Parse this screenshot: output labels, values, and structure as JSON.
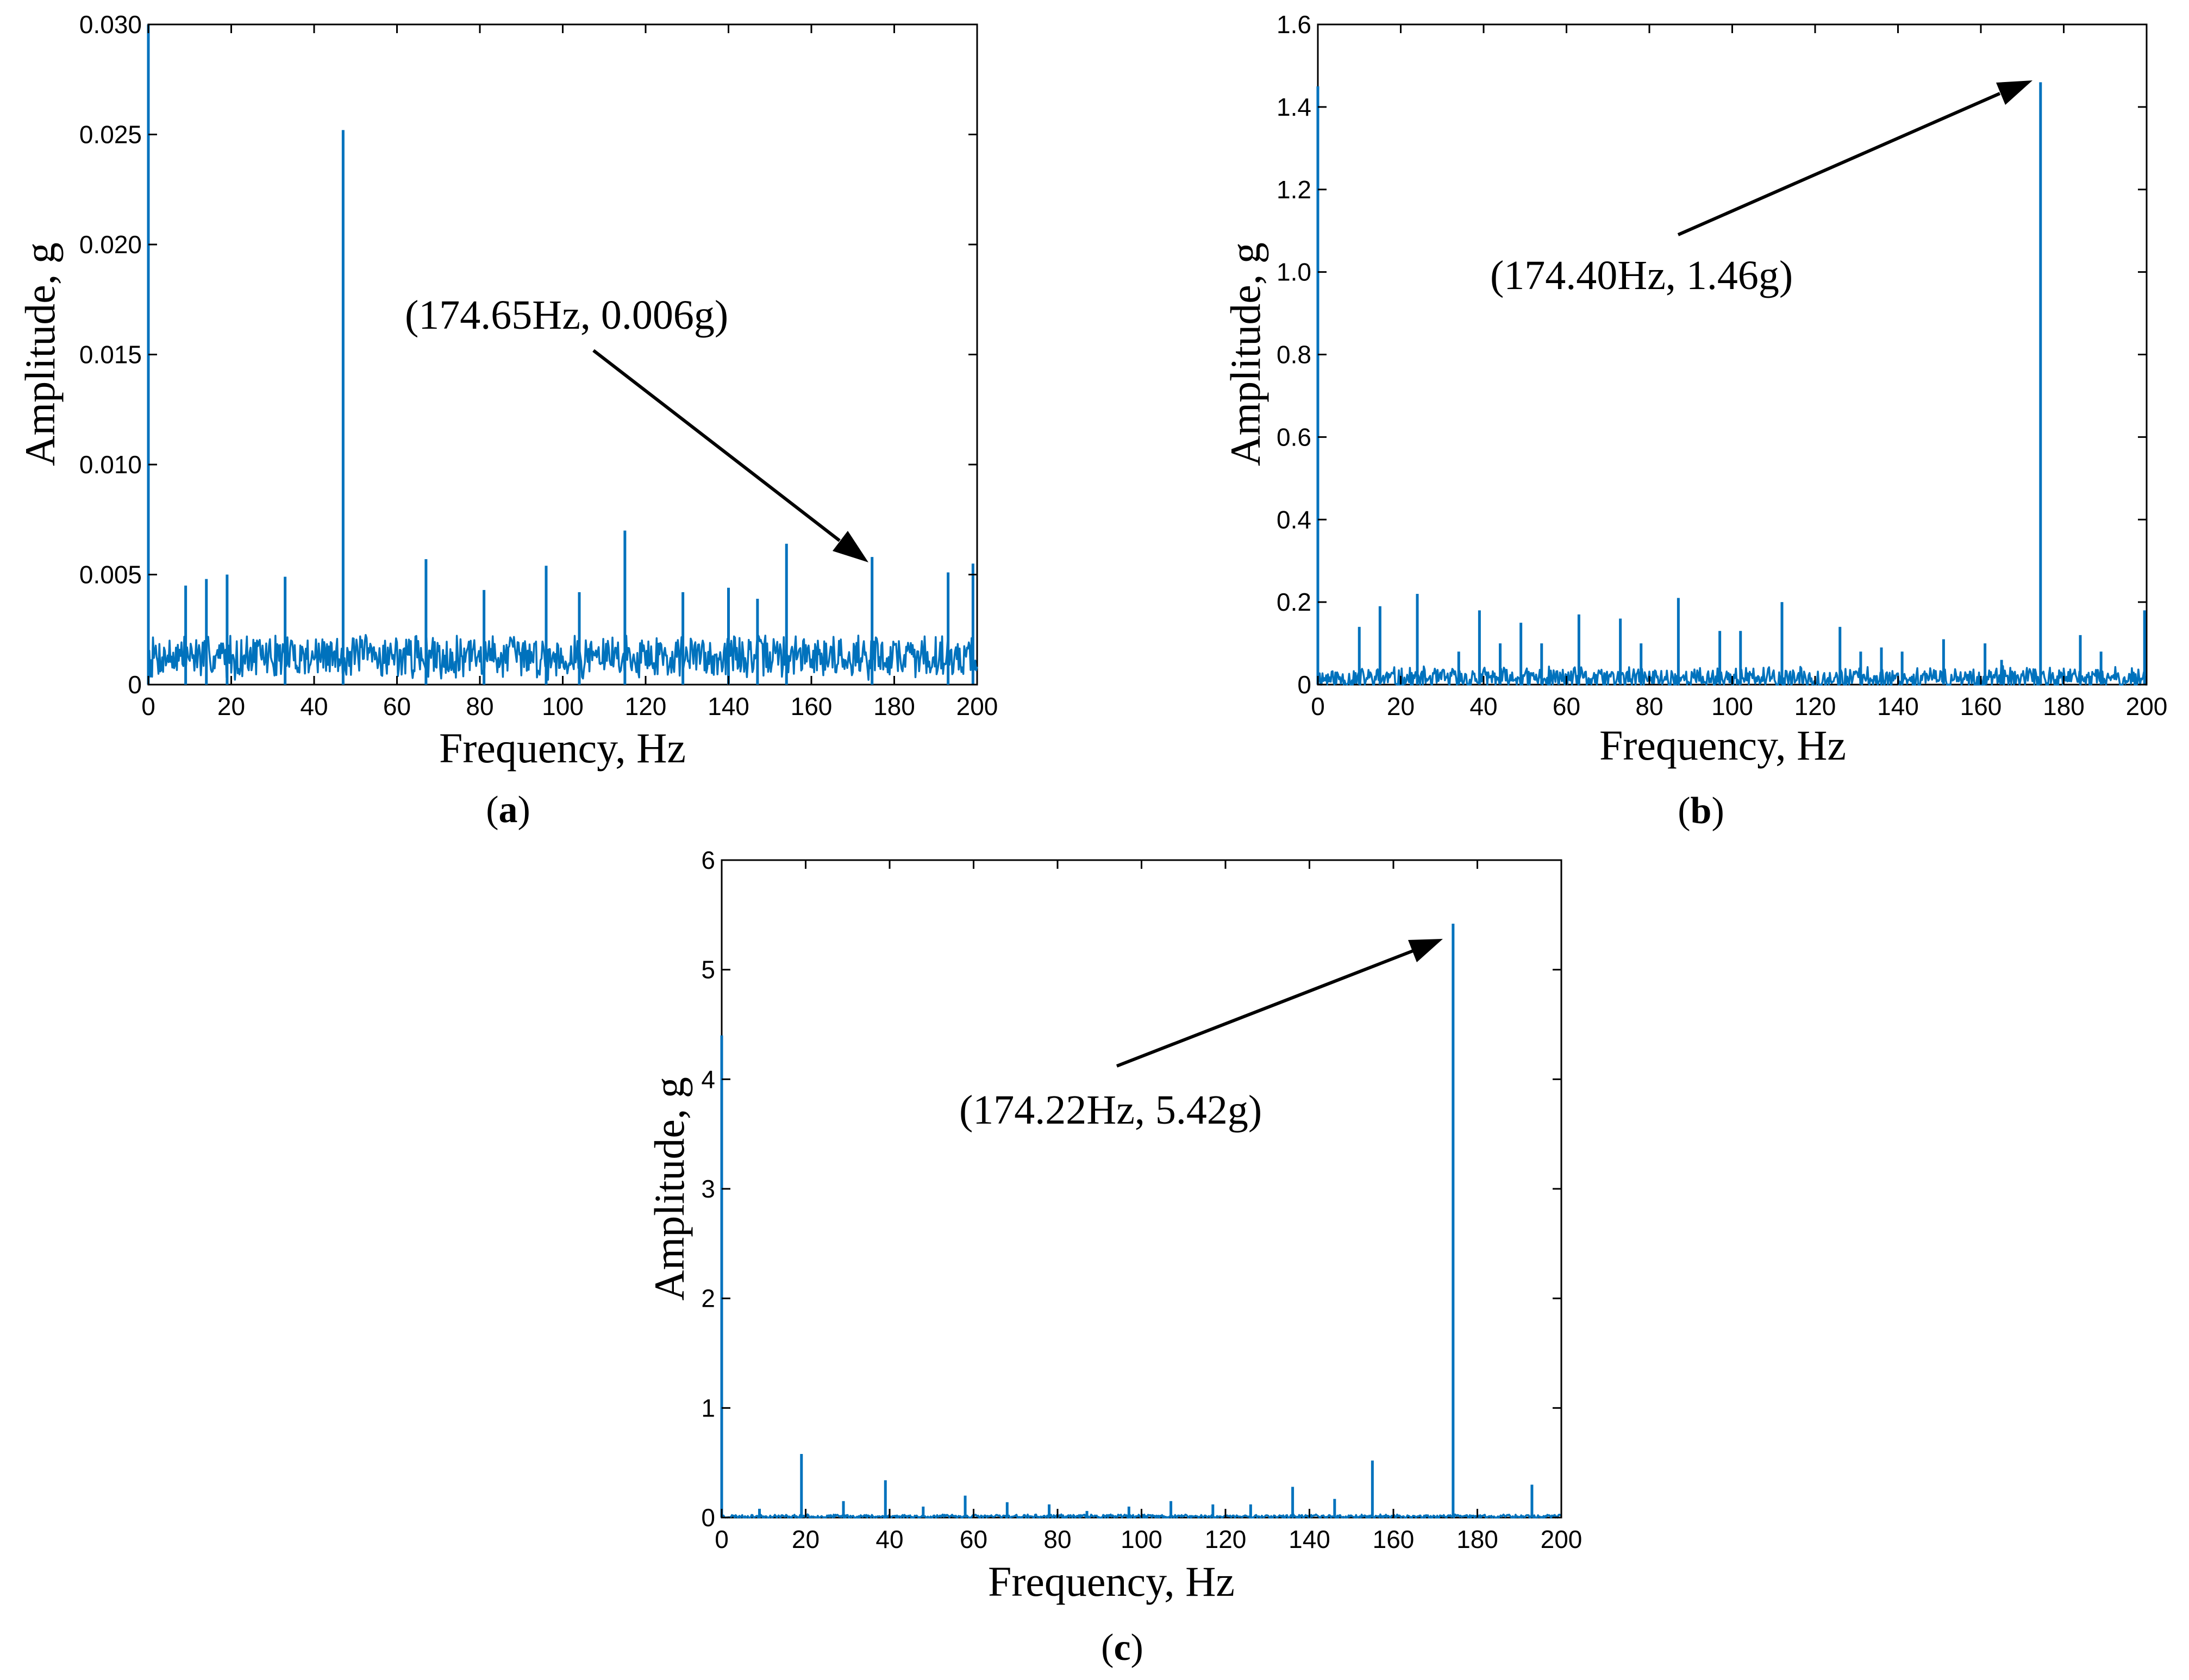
{
  "colors": {
    "series": "#0072BD",
    "axis": "#000000"
  },
  "chart_data": [
    {
      "id": "a",
      "type": "line",
      "caption": "a",
      "xlabel": "Frequency, Hz",
      "ylabel": "Amplitude, g",
      "xlim": [
        0,
        200
      ],
      "ylim": [
        0,
        0.03
      ],
      "xticks": [
        0,
        20,
        40,
        60,
        80,
        100,
        120,
        140,
        160,
        180,
        200
      ],
      "xtick_labels": [
        "0",
        "20",
        "40",
        "60",
        "80",
        "100",
        "120",
        "140",
        "160",
        "180",
        "200"
      ],
      "yticks": [
        0,
        0.005,
        0.01,
        0.015,
        0.02,
        0.025,
        0.03
      ],
      "ytick_labels": [
        "0",
        "0.005",
        "0.010",
        "0.015",
        "0.020",
        "0.025",
        "0.030"
      ],
      "noise": {
        "base": 0.0013,
        "amp": 0.0011,
        "seed": 7
      },
      "peaks": [
        {
          "x": 0,
          "y": 0.03
        },
        {
          "x": 47,
          "y": 0.0252
        },
        {
          "x": 9,
          "y": 0.0045
        },
        {
          "x": 14,
          "y": 0.0048
        },
        {
          "x": 19,
          "y": 0.005
        },
        {
          "x": 33,
          "y": 0.0049
        },
        {
          "x": 67,
          "y": 0.0057
        },
        {
          "x": 81,
          "y": 0.0043
        },
        {
          "x": 96,
          "y": 0.0054
        },
        {
          "x": 104,
          "y": 0.0042
        },
        {
          "x": 115,
          "y": 0.007
        },
        {
          "x": 129,
          "y": 0.0042
        },
        {
          "x": 140,
          "y": 0.0044
        },
        {
          "x": 147,
          "y": 0.0039
        },
        {
          "x": 154,
          "y": 0.0064
        },
        {
          "x": 174.65,
          "y": 0.0058
        },
        {
          "x": 193,
          "y": 0.0051
        },
        {
          "x": 199,
          "y": 0.0055
        }
      ],
      "annotation": {
        "text": "(174.65Hz, 0.006g)",
        "x": 174.65,
        "y": 0.006
      }
    },
    {
      "id": "b",
      "type": "line",
      "caption": "b",
      "xlabel": "Frequency, Hz",
      "ylabel": "Amplitude, g",
      "xlim": [
        0,
        200
      ],
      "ylim": [
        0,
        1.6
      ],
      "xticks": [
        0,
        20,
        40,
        60,
        80,
        100,
        120,
        140,
        160,
        180,
        200
      ],
      "xtick_labels": [
        "0",
        "20",
        "40",
        "60",
        "80",
        "100",
        "120",
        "140",
        "160",
        "180",
        "200"
      ],
      "yticks": [
        0,
        0.2,
        0.4,
        0.6,
        0.8,
        1.0,
        1.2,
        1.4,
        1.6
      ],
      "ytick_labels": [
        "0",
        "0.2",
        "0.4",
        "0.6",
        "0.8",
        "1.0",
        "1.2",
        "1.4",
        "1.6"
      ],
      "noise": {
        "base": 0.015,
        "amp": 0.03,
        "seed": 11
      },
      "peaks": [
        {
          "x": 0,
          "y": 1.45
        },
        {
          "x": 10,
          "y": 0.14
        },
        {
          "x": 15,
          "y": 0.19
        },
        {
          "x": 24,
          "y": 0.22
        },
        {
          "x": 34,
          "y": 0.08
        },
        {
          "x": 39,
          "y": 0.18
        },
        {
          "x": 44,
          "y": 0.1
        },
        {
          "x": 49,
          "y": 0.15
        },
        {
          "x": 54,
          "y": 0.1
        },
        {
          "x": 63,
          "y": 0.17
        },
        {
          "x": 73,
          "y": 0.16
        },
        {
          "x": 78,
          "y": 0.1
        },
        {
          "x": 87,
          "y": 0.21
        },
        {
          "x": 97,
          "y": 0.13
        },
        {
          "x": 102,
          "y": 0.13
        },
        {
          "x": 112,
          "y": 0.2
        },
        {
          "x": 126,
          "y": 0.14
        },
        {
          "x": 131,
          "y": 0.08
        },
        {
          "x": 136,
          "y": 0.09
        },
        {
          "x": 141,
          "y": 0.08
        },
        {
          "x": 151,
          "y": 0.11
        },
        {
          "x": 161,
          "y": 0.1
        },
        {
          "x": 165,
          "y": 0.06
        },
        {
          "x": 174.4,
          "y": 1.46
        },
        {
          "x": 184,
          "y": 0.12
        },
        {
          "x": 189,
          "y": 0.08
        },
        {
          "x": 199.5,
          "y": 0.18
        }
      ],
      "annotation": {
        "text": "(174.40Hz, 1.46g)",
        "x": 174.4,
        "y": 1.46
      }
    },
    {
      "id": "c",
      "type": "line",
      "caption": "c",
      "xlabel": "Frequency, Hz",
      "ylabel": "Amplitude, g",
      "xlim": [
        0,
        200
      ],
      "ylim": [
        0,
        6
      ],
      "xticks": [
        0,
        20,
        40,
        60,
        80,
        100,
        120,
        140,
        160,
        180,
        200
      ],
      "xtick_labels": [
        "0",
        "20",
        "40",
        "60",
        "80",
        "100",
        "120",
        "140",
        "160",
        "180",
        "200"
      ],
      "yticks": [
        0,
        1,
        2,
        3,
        4,
        5,
        6
      ],
      "ytick_labels": [
        "0",
        "1",
        "2",
        "3",
        "4",
        "5",
        "6"
      ],
      "noise": {
        "base": 0.01,
        "amp": 0.02,
        "seed": 23
      },
      "peaks": [
        {
          "x": 0,
          "y": 4.4
        },
        {
          "x": 9,
          "y": 0.08
        },
        {
          "x": 19,
          "y": 0.58
        },
        {
          "x": 29,
          "y": 0.15
        },
        {
          "x": 39,
          "y": 0.34
        },
        {
          "x": 48,
          "y": 0.1
        },
        {
          "x": 58,
          "y": 0.2
        },
        {
          "x": 68,
          "y": 0.14
        },
        {
          "x": 78,
          "y": 0.12
        },
        {
          "x": 87,
          "y": 0.06
        },
        {
          "x": 97,
          "y": 0.1
        },
        {
          "x": 107,
          "y": 0.15
        },
        {
          "x": 117,
          "y": 0.12
        },
        {
          "x": 126,
          "y": 0.12
        },
        {
          "x": 136,
          "y": 0.28
        },
        {
          "x": 146,
          "y": 0.17
        },
        {
          "x": 155,
          "y": 0.52
        },
        {
          "x": 174.22,
          "y": 5.42
        },
        {
          "x": 193,
          "y": 0.3
        }
      ],
      "annotation": {
        "text": "(174.22Hz, 5.42g)",
        "x": 174.22,
        "y": 5.42
      }
    }
  ]
}
